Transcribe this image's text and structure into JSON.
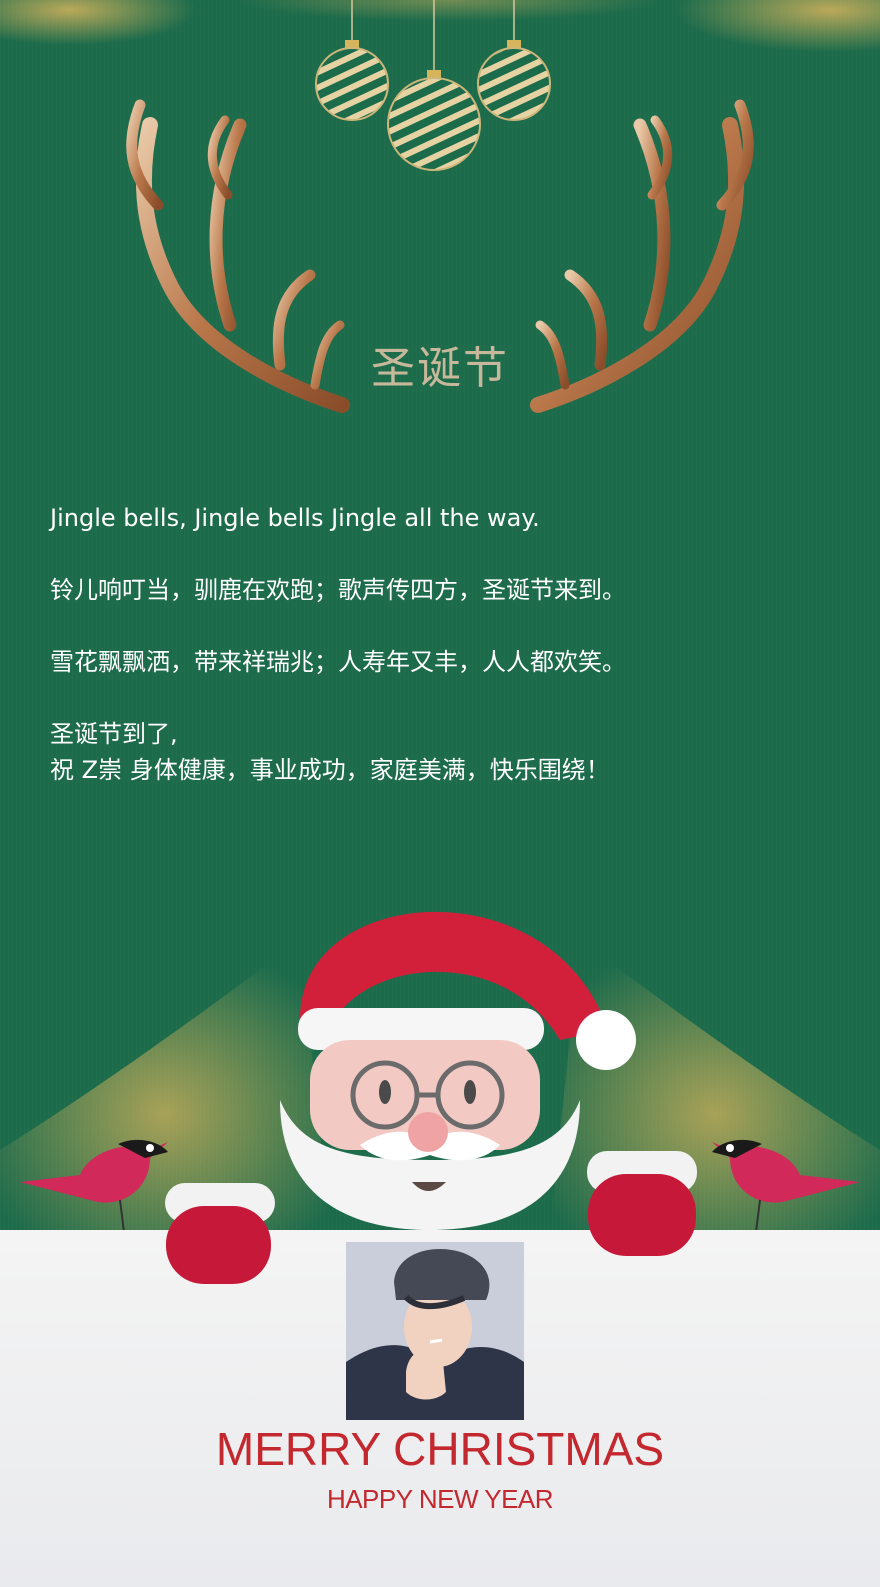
{
  "card": {
    "title": "圣诞节",
    "greeting": {
      "line1": "Jingle bells, Jingle bells Jingle all the way.",
      "line2": "铃儿响叮当，驯鹿在欢跑；歌声传四方，圣诞节来到。",
      "line3": "雪花飘飘洒，带来祥瑞兆；人寿年又丰，人人都欢笑。",
      "line4": "圣诞节到了,",
      "line5": "祝 Z崇 身体健康，事业成功，家庭美满，快乐围绕！"
    },
    "footer": {
      "merry": "MERRY CHRISTMAS",
      "happy": "HAPPY NEW YEAR"
    }
  },
  "colors": {
    "background_green": "#1c6b4b",
    "gold": "#d6b45c",
    "antler_bronze": "#b9774a",
    "santa_red": "#d2203b",
    "footer_text_red": "#c3282e",
    "panel_white": "#f0f0f2"
  },
  "icons": [
    "ornament-ball-icon",
    "antler-icon",
    "santa-claus-illustration",
    "bird-icon",
    "avatar-photo"
  ]
}
